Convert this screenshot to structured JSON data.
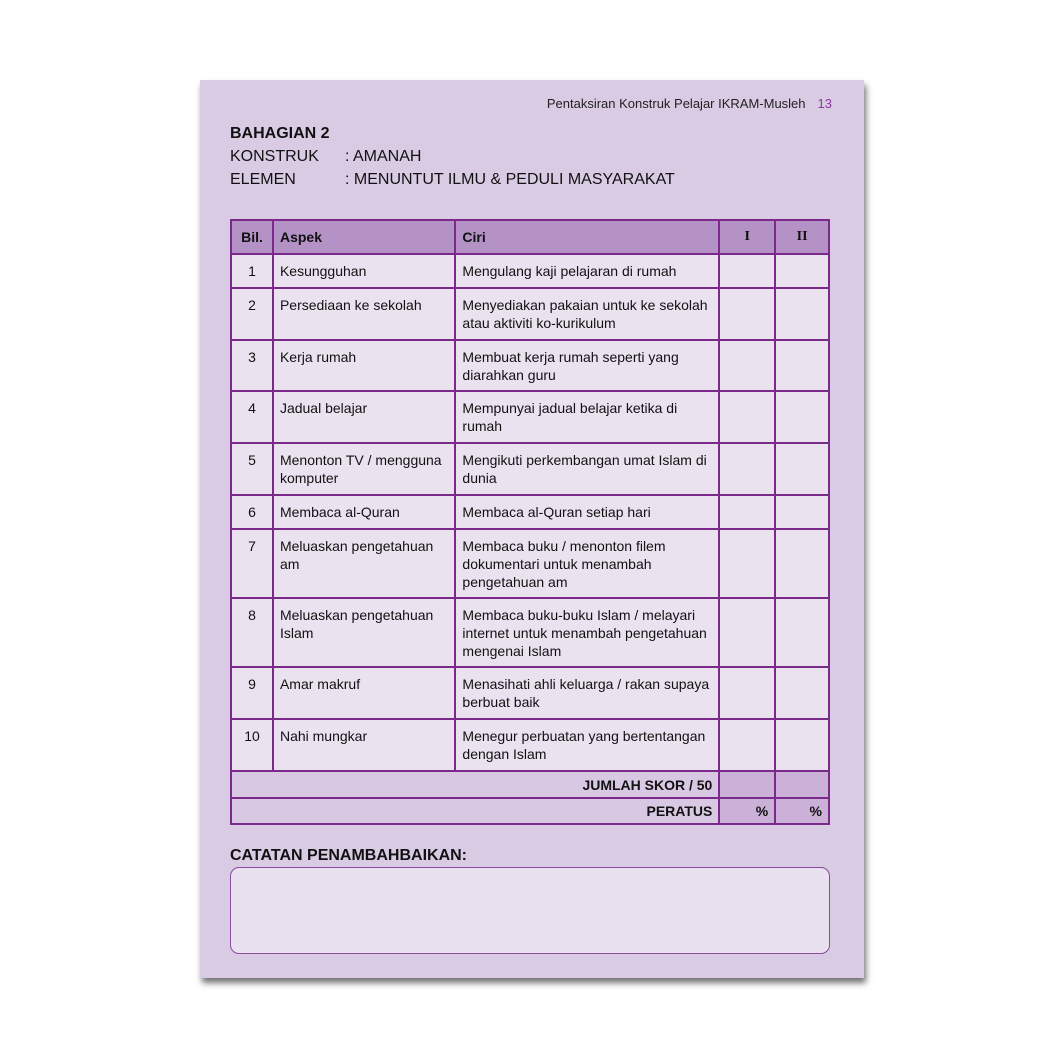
{
  "running_head": {
    "title": "Pentaksiran Konstruk Pelajar IKRAM-Musleh",
    "page_number": "13"
  },
  "section_title": "BAHAGIAN 2",
  "konstruk": {
    "label": "KONSTRUK",
    "value": ": AMANAH"
  },
  "elemen": {
    "label": "ELEMEN",
    "value": ": MENUNTUT ILMU & PEDULI MASYARAKAT"
  },
  "table": {
    "headers": [
      "Bil.",
      "Aspek",
      "Ciri",
      "I",
      "II"
    ],
    "rows": [
      {
        "bil": "1",
        "aspek": "Kesungguhan",
        "ciri": "Mengulang kaji pelajaran di rumah"
      },
      {
        "bil": "2",
        "aspek": "Persediaan ke sekolah",
        "ciri": "Menyediakan pakaian untuk ke sekolah atau aktiviti ko-kurikulum"
      },
      {
        "bil": "3",
        "aspek": "Kerja rumah",
        "ciri": "Membuat kerja rumah seperti yang diarahkan guru"
      },
      {
        "bil": "4",
        "aspek": "Jadual belajar",
        "ciri": "Mempunyai jadual belajar ketika di rumah"
      },
      {
        "bil": "5",
        "aspek": "Menonton TV / mengguna komputer",
        "ciri": "Mengikuti perkembangan umat Islam di dunia"
      },
      {
        "bil": "6",
        "aspek": "Membaca al-Quran",
        "ciri": "Membaca al-Quran setiap hari"
      },
      {
        "bil": "7",
        "aspek": "Meluaskan pengetahuan am",
        "ciri": "Membaca buku / menonton filem dokumentari untuk menambah pengetahuan am"
      },
      {
        "bil": "8",
        "aspek": "Meluaskan pengetahuan Islam",
        "ciri": "Membaca buku-buku Islam / melayari internet untuk menambah pengetahuan mengenai Islam"
      },
      {
        "bil": "9",
        "aspek": "Amar makruf",
        "ciri": "Menasihati ahli keluarga / rakan supaya berbuat baik"
      },
      {
        "bil": "10",
        "aspek": "Nahi mungkar",
        "ciri": "Menegur perbuatan yang bertentangan dengan Islam"
      }
    ],
    "total_label": "JUMLAH SKOR / 50",
    "percent_label": "PERATUS",
    "percent_sign": "%"
  },
  "notes_label": "CATATAN PENAMBAHBAIKAN:"
}
